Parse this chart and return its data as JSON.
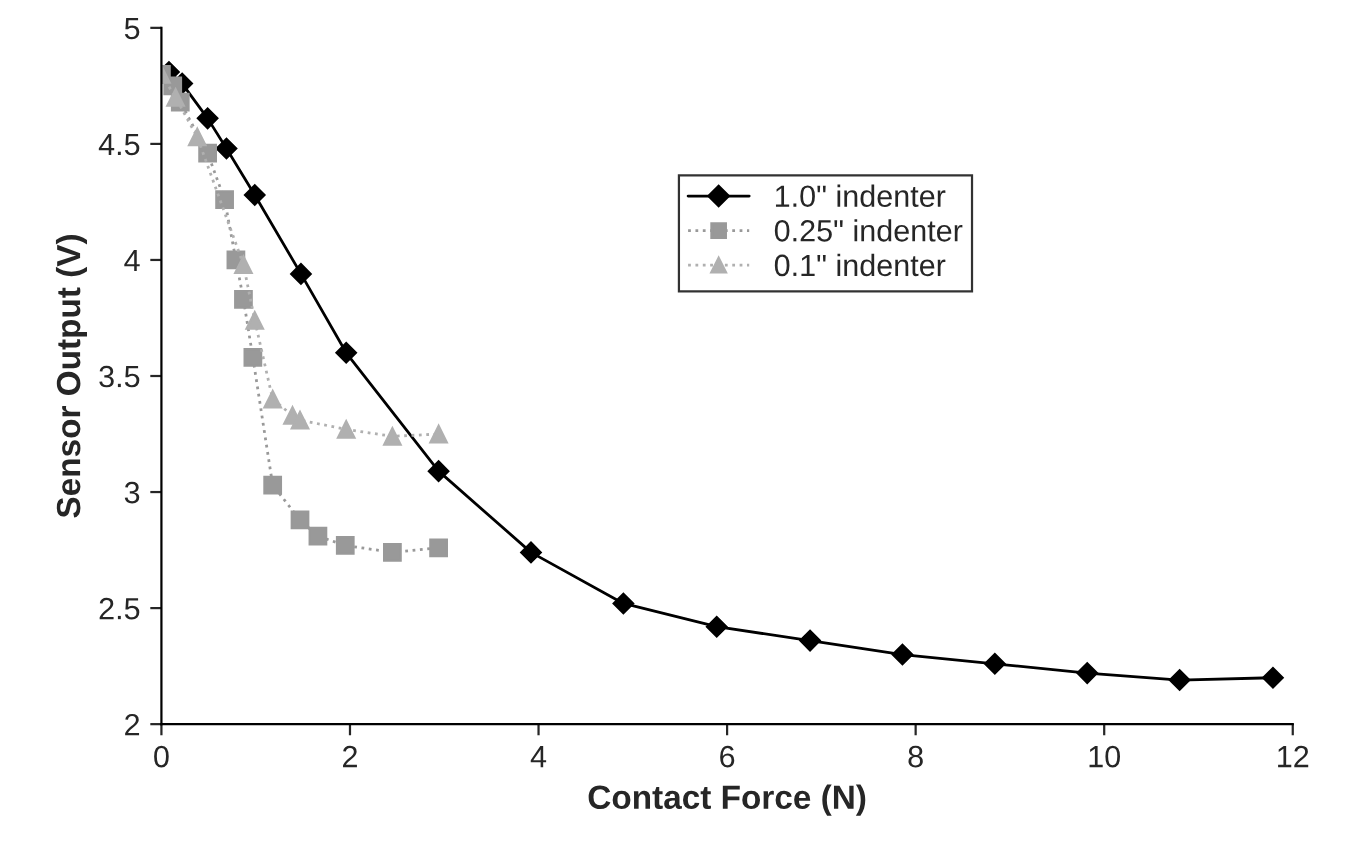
{
  "chart_data": {
    "type": "line",
    "xlabel": "Contact Force (N)",
    "ylabel": "Sensor Output (V)",
    "xlim": [
      0,
      12
    ],
    "xticks": [
      0,
      2,
      4,
      6,
      8,
      10,
      12
    ],
    "ylim": [
      2,
      5
    ],
    "yticks": [
      2,
      2.5,
      3,
      3.5,
      4,
      4.5,
      5
    ],
    "grid": false,
    "legend": "top right",
    "series": [
      {
        "name": "1.0\" indenter",
        "color": "#000000",
        "marker": "diamond",
        "line_style": "solid",
        "x": [
          0.08,
          0.22,
          0.49,
          0.69,
          0.99,
          1.48,
          1.96,
          2.94,
          3.92,
          4.9,
          5.89,
          6.88,
          7.86,
          8.84,
          9.82,
          10.8,
          11.79
        ],
        "values": [
          4.81,
          4.76,
          4.61,
          4.48,
          4.28,
          3.94,
          3.6,
          3.09,
          2.74,
          2.52,
          2.42,
          2.36,
          2.3,
          2.26,
          2.22,
          2.19,
          2.2
        ]
      },
      {
        "name": "0.25\" indenter",
        "color": "#999999",
        "marker": "square",
        "line_style": "dotted",
        "x": [
          0.0,
          0.12,
          0.2,
          0.49,
          0.67,
          0.79,
          0.87,
          0.97,
          1.18,
          1.47,
          1.66,
          1.95,
          2.45,
          2.94
        ],
        "values": [
          4.8,
          4.75,
          4.68,
          4.46,
          4.26,
          4.0,
          3.83,
          3.58,
          3.03,
          2.88,
          2.81,
          2.77,
          2.74,
          2.76
        ]
      },
      {
        "name": "0.1\" indenter",
        "color": "#b0b0b0",
        "marker": "triangle",
        "line_style": "dotted",
        "x": [
          0.0,
          0.15,
          0.38,
          0.87,
          0.99,
          1.18,
          1.39,
          1.47,
          1.96,
          2.45,
          2.94
        ],
        "values": [
          4.8,
          4.7,
          4.53,
          3.98,
          3.74,
          3.4,
          3.33,
          3.31,
          3.27,
          3.24,
          3.25
        ]
      }
    ]
  }
}
